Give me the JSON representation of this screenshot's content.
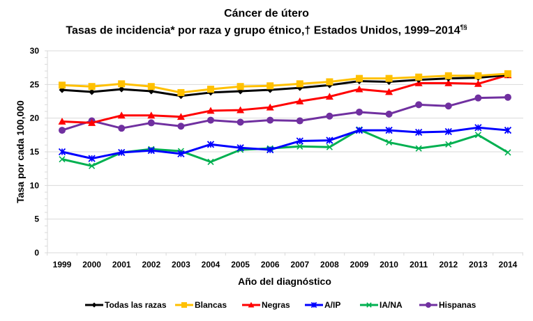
{
  "chart_data": {
    "type": "line",
    "title": "Cáncer de útero",
    "subtitle": "Tasas de incidencia* por raza y grupo étnico,† Estados Unidos, 1999–2014",
    "subtitle_superscript": "¶§",
    "xlabel": "Año del diagnóstico",
    "ylabel": "Tasa por cada 100,000",
    "ylim": [
      0,
      30
    ],
    "yticks": [
      0,
      5,
      10,
      15,
      20,
      25,
      30
    ],
    "grid": true,
    "legend_position": "bottom",
    "x": [
      "1999",
      "2000",
      "2001",
      "2002",
      "2003",
      "2004",
      "2005",
      "2006",
      "2007",
      "2008",
      "2009",
      "2010",
      "2011",
      "2012",
      "2013",
      "2014"
    ],
    "series": [
      {
        "name": "Todas las razas",
        "color": "#000000",
        "marker": "diamond",
        "values": [
          24.2,
          23.9,
          24.3,
          24.0,
          23.3,
          23.8,
          24.0,
          24.2,
          24.5,
          24.9,
          25.5,
          25.4,
          25.7,
          25.9,
          26.0,
          26.4
        ]
      },
      {
        "name": "Blancas",
        "color": "#FFC000",
        "marker": "square",
        "values": [
          24.9,
          24.7,
          25.1,
          24.7,
          23.8,
          24.3,
          24.7,
          24.8,
          25.1,
          25.4,
          25.9,
          25.9,
          26.1,
          26.3,
          26.3,
          26.6
        ]
      },
      {
        "name": "Negras",
        "color": "#FF0000",
        "marker": "triangle",
        "values": [
          19.5,
          19.3,
          20.4,
          20.4,
          20.2,
          21.1,
          21.2,
          21.6,
          22.5,
          23.2,
          24.3,
          23.9,
          25.2,
          25.2,
          25.1,
          26.4
        ]
      },
      {
        "name": "A/IP",
        "color": "#0000FF",
        "marker": "asterisk",
        "values": [
          15.0,
          14.0,
          14.9,
          15.2,
          14.7,
          16.1,
          15.6,
          15.3,
          16.6,
          16.7,
          18.2,
          18.2,
          17.9,
          18.0,
          18.6,
          18.2
        ]
      },
      {
        "name": "IA/NA",
        "color": "#00B050",
        "marker": "x",
        "values": [
          13.9,
          12.9,
          14.9,
          15.4,
          15.1,
          13.5,
          15.3,
          15.5,
          15.8,
          15.7,
          18.3,
          16.4,
          15.5,
          16.1,
          17.5,
          14.9
        ]
      },
      {
        "name": "Hispanas",
        "color": "#7030A0",
        "marker": "circle",
        "values": [
          18.2,
          19.6,
          18.5,
          19.3,
          18.8,
          19.7,
          19.4,
          19.7,
          19.6,
          20.3,
          20.9,
          20.6,
          22.0,
          21.8,
          23.0,
          23.1
        ]
      }
    ]
  }
}
